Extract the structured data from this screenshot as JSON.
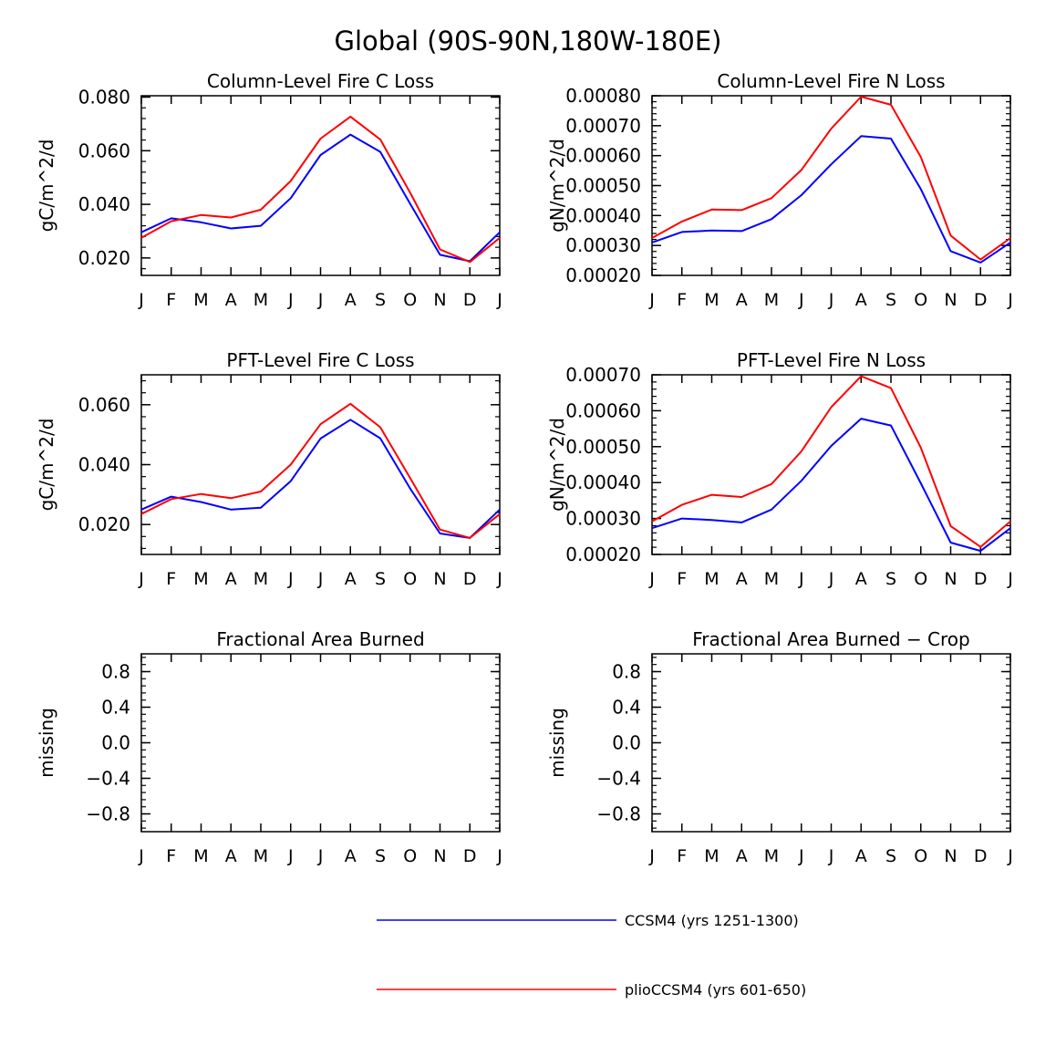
{
  "figure": {
    "title": "Global (90S-90N,180W-180E)"
  },
  "colors": {
    "series_a": "#0000ff",
    "series_b": "#ff0000",
    "axis": "#000000"
  },
  "legend": [
    {
      "label": "CCSM4 (yrs 1251-1300)",
      "color": "#0000ff"
    },
    {
      "label": "plioCCSM4 (yrs 601-650)",
      "color": "#ff0000"
    }
  ],
  "chart_data": [
    {
      "type": "line",
      "title": "Column-Level Fire C Loss",
      "ylabel": "gC/m^2/d",
      "xlabel": "",
      "categories": [
        "J",
        "F",
        "M",
        "A",
        "M",
        "J",
        "J",
        "A",
        "S",
        "O",
        "N",
        "D",
        "J"
      ],
      "ylim": [
        0.0135,
        0.0805
      ],
      "yticks": [
        "0.080",
        "0.060",
        "0.040",
        "0.020"
      ],
      "ytick_values": [
        0.08,
        0.06,
        0.04,
        0.02
      ],
      "series": [
        {
          "name": "CCSM4 (yrs 1251-1300)",
          "values": [
            0.0296,
            0.0348,
            0.0333,
            0.031,
            0.032,
            0.0423,
            0.0584,
            0.066,
            0.0596,
            0.0402,
            0.0212,
            0.0188,
            0.0296
          ]
        },
        {
          "name": "plioCCSM4 (yrs 601-650)",
          "values": [
            0.0275,
            0.0337,
            0.036,
            0.0351,
            0.038,
            0.0487,
            0.0645,
            0.0727,
            0.0642,
            0.0443,
            0.0232,
            0.0185,
            0.0275
          ]
        }
      ]
    },
    {
      "type": "line",
      "title": "Column-Level Fire N Loss",
      "ylabel": "gN/m^2/d",
      "xlabel": "",
      "categories": [
        "J",
        "F",
        "M",
        "A",
        "M",
        "J",
        "J",
        "A",
        "S",
        "O",
        "N",
        "D",
        "J"
      ],
      "ylim": [
        0.0002,
        0.0008
      ],
      "yticks": [
        "0.00080",
        "0.00070",
        "0.00060",
        "0.00050",
        "0.00040",
        "0.00030",
        "0.00020"
      ],
      "ytick_values": [
        0.0008,
        0.0007,
        0.0006,
        0.0005,
        0.0004,
        0.0003,
        0.0002
      ],
      "series": [
        {
          "name": "CCSM4 (yrs 1251-1300)",
          "values": [
            0.00031,
            0.000345,
            0.00035,
            0.000348,
            0.000388,
            0.000468,
            0.000571,
            0.000665,
            0.000657,
            0.000488,
            0.000281,
            0.000243,
            0.00031
          ]
        },
        {
          "name": "plioCCSM4 (yrs 601-650)",
          "values": [
            0.000325,
            0.00038,
            0.00042,
            0.000418,
            0.000458,
            0.000552,
            0.00069,
            0.000797,
            0.00077,
            0.000595,
            0.000333,
            0.000253,
            0.000325
          ]
        }
      ]
    },
    {
      "type": "line",
      "title": "PFT-Level Fire C Loss",
      "ylabel": "gC/m^2/d",
      "xlabel": "",
      "categories": [
        "J",
        "F",
        "M",
        "A",
        "M",
        "J",
        "J",
        "A",
        "S",
        "O",
        "N",
        "D",
        "J"
      ],
      "ylim": [
        0.01,
        0.07
      ],
      "yticks": [
        "0.060",
        "0.040",
        "0.020"
      ],
      "ytick_values": [
        0.06,
        0.04,
        0.02
      ],
      "series": [
        {
          "name": "CCSM4 (yrs 1251-1300)",
          "values": [
            0.025,
            0.0293,
            0.0275,
            0.025,
            0.0256,
            0.0345,
            0.0487,
            0.055,
            0.0488,
            0.032,
            0.017,
            0.0155,
            0.025
          ]
        },
        {
          "name": "plioCCSM4 (yrs 601-650)",
          "values": [
            0.0235,
            0.0285,
            0.0302,
            0.0288,
            0.031,
            0.04,
            0.0535,
            0.0603,
            0.0525,
            0.0355,
            0.0183,
            0.0155,
            0.0235
          ]
        }
      ]
    },
    {
      "type": "line",
      "title": "PFT-Level Fire N Loss",
      "ylabel": "gN/m^2/d",
      "xlabel": "",
      "categories": [
        "J",
        "F",
        "M",
        "A",
        "M",
        "J",
        "J",
        "A",
        "S",
        "O",
        "N",
        "D",
        "J"
      ],
      "ylim": [
        0.0002,
        0.0007
      ],
      "yticks": [
        "0.00070",
        "0.00060",
        "0.00050",
        "0.00040",
        "0.00030",
        "0.00020"
      ],
      "ytick_values": [
        0.0007,
        0.0006,
        0.0005,
        0.0004,
        0.0003,
        0.0002
      ],
      "series": [
        {
          "name": "CCSM4 (yrs 1251-1300)",
          "values": [
            0.000273,
            0.0003,
            0.000296,
            0.000289,
            0.000325,
            0.000405,
            0.000502,
            0.000578,
            0.000559,
            0.000398,
            0.000233,
            0.00021,
            0.000273
          ]
        },
        {
          "name": "plioCCSM4 (yrs 601-650)",
          "values": [
            0.000292,
            0.000338,
            0.000366,
            0.00036,
            0.000396,
            0.000487,
            0.00061,
            0.000696,
            0.000663,
            0.000497,
            0.000279,
            0.000221,
            0.000292
          ]
        }
      ]
    },
    {
      "type": "line",
      "title": "Fractional Area Burned",
      "ylabel": "missing",
      "xlabel": "",
      "categories": [
        "J",
        "F",
        "M",
        "A",
        "M",
        "J",
        "J",
        "A",
        "S",
        "O",
        "N",
        "D",
        "J"
      ],
      "ylim": [
        -1.0,
        1.0
      ],
      "yticks": [
        "0.8",
        "0.4",
        "0.0",
        "−0.4",
        "−0.8"
      ],
      "ytick_values": [
        0.8,
        0.4,
        0.0,
        -0.4,
        -0.8
      ],
      "series": []
    },
    {
      "type": "line",
      "title": "Fractional Area Burned − Crop",
      "ylabel": "missing",
      "xlabel": "",
      "categories": [
        "J",
        "F",
        "M",
        "A",
        "M",
        "J",
        "J",
        "A",
        "S",
        "O",
        "N",
        "D",
        "J"
      ],
      "ylim": [
        -1.0,
        1.0
      ],
      "yticks": [
        "0.8",
        "0.4",
        "0.0",
        "−0.4",
        "−0.8"
      ],
      "ytick_values": [
        0.8,
        0.4,
        0.0,
        -0.4,
        -0.8
      ],
      "series": []
    }
  ]
}
